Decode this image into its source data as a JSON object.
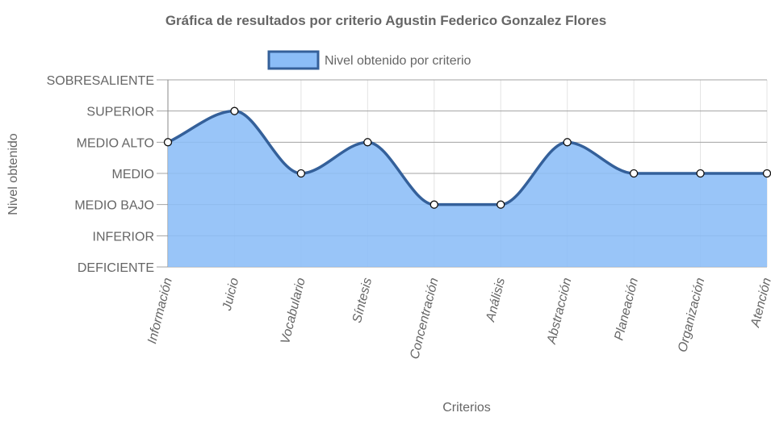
{
  "chart_data": {
    "type": "area",
    "title": "Gráfica de resultados por criterio Agustin Federico Gonzalez Flores",
    "xlabel": "Criterios",
    "ylabel": "Nivel obtenido",
    "categories": [
      "Información",
      "Juicio",
      "Vocabulario",
      "Síntesis",
      "Concentración",
      "Análisis",
      "Abstracción",
      "Planeación",
      "Organización",
      "Atención"
    ],
    "y_levels": [
      "DEFICIENTE",
      "INFERIOR",
      "MEDIO BAJO",
      "MEDIO",
      "MEDIO ALTO",
      "SUPERIOR",
      "SOBRESALIENTE"
    ],
    "ylim": [
      0,
      6
    ],
    "series": [
      {
        "name": "Nivel obtenido por criterio",
        "values": [
          4,
          5,
          3,
          4,
          2,
          2,
          4,
          3,
          3,
          3
        ],
        "value_labels": [
          "MEDIO ALTO",
          "SUPERIOR",
          "MEDIO",
          "MEDIO ALTO",
          "MEDIO BAJO",
          "MEDIO BAJO",
          "MEDIO ALTO",
          "MEDIO",
          "MEDIO",
          "MEDIO"
        ]
      }
    ],
    "legend_position": "top",
    "grid": true,
    "colors": {
      "fill": "#8bbdf7",
      "line": "#34609a",
      "grid": "#e3e3e3",
      "level_line": "#a3a3a3"
    }
  }
}
